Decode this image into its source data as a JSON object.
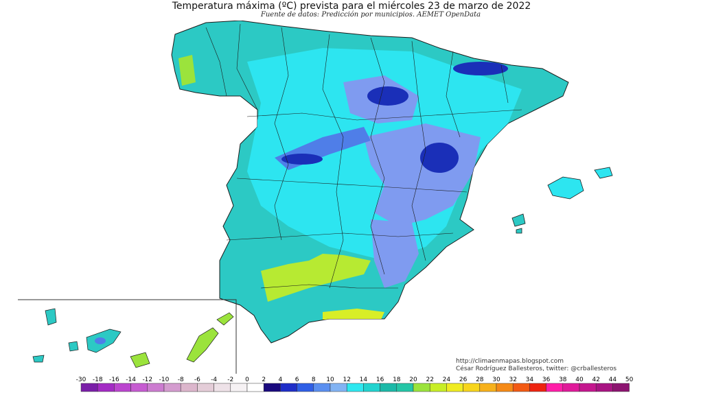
{
  "map": {
    "title": "Temperatura máxima (ºC) prevista para el miércoles 23 de marzo de 2022",
    "subtitle": "Fuente de datos: Predicción por municipios. AEMET OpenData",
    "credit_url": "http://climaenmapas.blogspot.com",
    "credit_author": "César Rodríguez Ballesteros, twitter: @crballesteros",
    "legend": {
      "labels": [
        "-30",
        "-18",
        "-16",
        "-14",
        "-12",
        "-10",
        "-8",
        "-6",
        "-4",
        "-2",
        "0",
        "2",
        "4",
        "6",
        "8",
        "10",
        "12",
        "14",
        "16",
        "18",
        "20",
        "22",
        "24",
        "26",
        "28",
        "30",
        "32",
        "34",
        "36",
        "38",
        "40",
        "42",
        "44",
        "50"
      ],
      "colors": [
        "#7a1fa8",
        "#a32bc4",
        "#bb45cf",
        "#c65bd1",
        "#cc7cd0",
        "#d49ccf",
        "#dcb6cc",
        "#e4cdd8",
        "#eee2e8",
        "#f6f2f4",
        "#ffffff",
        "#1a0a7e",
        "#1f2ec8",
        "#2f5fe6",
        "#5a8ff0",
        "#82b3f3",
        "#2ee8f0",
        "#22d3cf",
        "#1cb9a8",
        "#25c6a7",
        "#9be33c",
        "#c8ee27",
        "#f0ec22",
        "#f7d51c",
        "#f7b11b",
        "#f58a17",
        "#f25a14",
        "#ee2410",
        "#ff1ea8",
        "#e01a9a",
        "#c4178e",
        "#a81482",
        "#8c1470"
      ]
    },
    "colors": {
      "sea": "#ffffff",
      "land_base": "#2cc9c4",
      "cool": "#2de5f0",
      "cold": "#7f9bf0",
      "very_cold": "#1a2fb8",
      "warm": "#b7ea32",
      "border": "#1a1a1a"
    }
  }
}
